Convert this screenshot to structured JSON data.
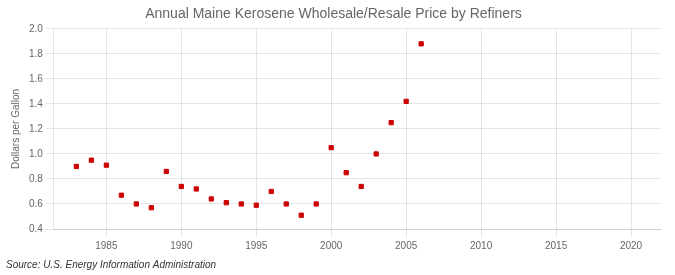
{
  "chart_data": {
    "type": "scatter",
    "title": "Annual Maine Kerosene Wholesale/Resale Price by Refiners",
    "y_label": "Dollars per Gallon",
    "annotations": [
      "Source: U.S. Energy Information Administration"
    ],
    "x": [
      1983,
      1984,
      1985,
      1986,
      1987,
      1988,
      1989,
      1990,
      1991,
      1992,
      1993,
      1994,
      1995,
      1996,
      1997,
      1998,
      1999,
      2000,
      2001,
      2002,
      2003,
      2004,
      2005,
      2006
    ],
    "values": [
      0.9,
      0.95,
      0.91,
      0.67,
      0.6,
      0.57,
      0.86,
      0.74,
      0.72,
      0.64,
      0.61,
      0.6,
      0.59,
      0.7,
      0.6,
      0.51,
      0.6,
      1.05,
      0.85,
      0.74,
      1.0,
      1.25,
      1.42,
      1.88
    ],
    "color": "#cc0000",
    "marker": "square",
    "xlim": [
      1981.5,
      2022
    ],
    "xticks": [
      1985,
      1990,
      1995,
      2000,
      2005,
      2010,
      2015,
      2020
    ],
    "ylim": [
      0.4,
      2.0
    ],
    "yticks": [
      0.4,
      0.6,
      0.8,
      {
        "value": 1.0,
        "label": "1.0"
      },
      1.2,
      1.4,
      1.6,
      1.8,
      {
        "value": 2.0,
        "label": "2.0"
      }
    ],
    "grid": true
  }
}
